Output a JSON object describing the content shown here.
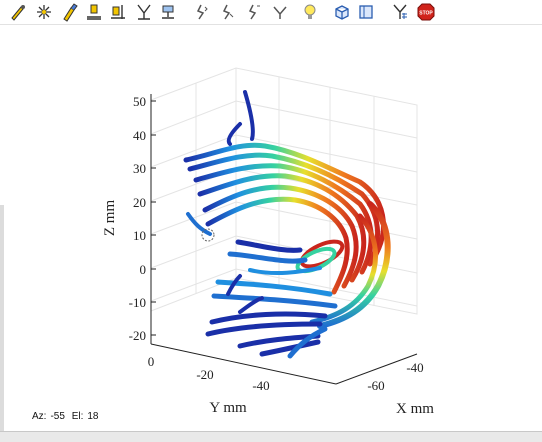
{
  "toolbar": {
    "buttons": [
      {
        "name": "select-tool-icon"
      },
      {
        "name": "select-points-icon"
      },
      {
        "name": "brush-icon"
      },
      {
        "name": "align-bottom-icon"
      },
      {
        "name": "align-right-icon"
      },
      {
        "name": "distribute-icon"
      },
      {
        "name": "group-icon"
      },
      {
        "name": "rotate-left-icon"
      },
      {
        "name": "rotate-center-icon"
      },
      {
        "name": "rotate-right-icon"
      },
      {
        "name": "rotate-down-icon"
      },
      {
        "name": "lightbulb-icon"
      },
      {
        "name": "cube-3d-icon"
      },
      {
        "name": "box-view-icon"
      },
      {
        "name": "grid-tool-icon"
      },
      {
        "name": "stop-icon",
        "label": "STOP"
      }
    ]
  },
  "plot": {
    "zlabel": "Z mm",
    "ylabel": "Y mm",
    "xlabel": "X mm",
    "z_ticks": [
      "50",
      "40",
      "30",
      "20",
      "10",
      "0",
      "-10",
      "-20"
    ],
    "y_ticks": [
      "0",
      "-20",
      "-40"
    ],
    "x_ticks": [
      "-40",
      "-60"
    ],
    "colormap": "jet",
    "colors": {
      "low": "#1a2fa8",
      "mid": "#2fd07a",
      "high": "#d8331f"
    }
  },
  "status": {
    "az_label": "Az:",
    "az_value": "-55",
    "el_label": "El:",
    "el_value": "18"
  }
}
